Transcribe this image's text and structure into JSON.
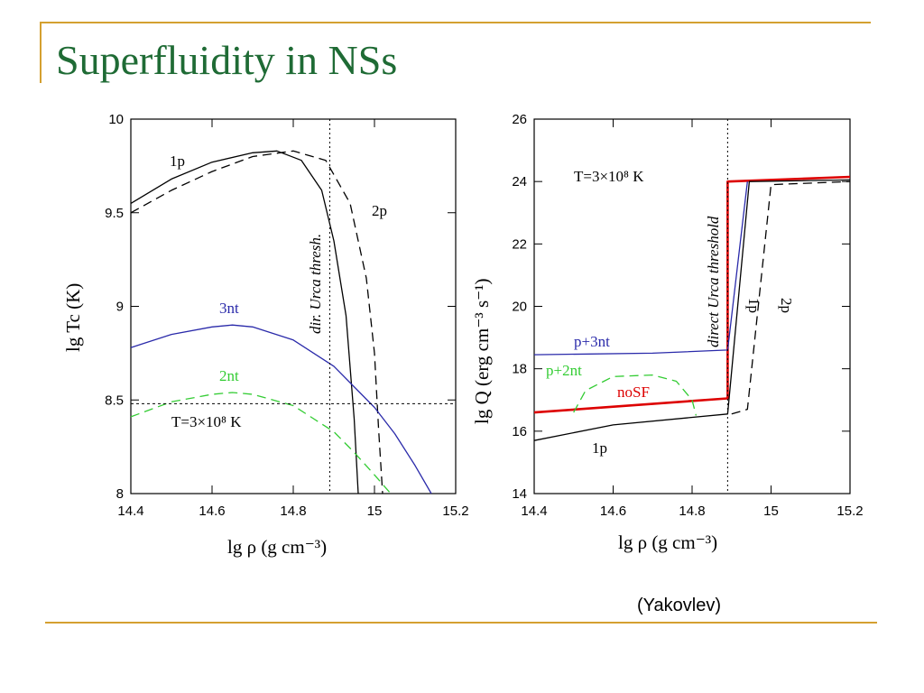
{
  "slide": {
    "title": "Superfluidity in NSs",
    "credit": "(Yakovlev)"
  },
  "chart_data": [
    {
      "type": "line",
      "xlabel": "lg ρ (g cm⁻³)",
      "ylabel": "lg Tc (K)",
      "xlim": [
        14.4,
        15.2
      ],
      "ylim": [
        8,
        10
      ],
      "xticks": [
        "14.4",
        "14.6",
        "14.8",
        "15",
        "15.2"
      ],
      "yticks": [
        "8",
        "8.5",
        "9",
        "9.5",
        "10"
      ],
      "series": [
        {
          "name": "1p",
          "color": "#000000",
          "dash": "solid",
          "x": [
            14.4,
            14.5,
            14.6,
            14.7,
            14.76,
            14.82,
            14.87,
            14.9,
            14.93,
            14.95,
            14.96
          ],
          "y": [
            9.55,
            9.68,
            9.77,
            9.82,
            9.83,
            9.78,
            9.62,
            9.35,
            8.95,
            8.4,
            8.0
          ]
        },
        {
          "name": "2p",
          "color": "#000000",
          "dash": "dashed",
          "x": [
            14.4,
            14.5,
            14.6,
            14.7,
            14.8,
            14.88,
            14.94,
            14.98,
            15.0,
            15.01,
            15.02
          ],
          "y": [
            9.5,
            9.62,
            9.72,
            9.8,
            9.83,
            9.78,
            9.55,
            9.15,
            8.75,
            8.35,
            8.0
          ]
        },
        {
          "name": "3nt",
          "color": "#2a2aaa",
          "dash": "solid",
          "x": [
            14.4,
            14.5,
            14.6,
            14.65,
            14.7,
            14.8,
            14.9,
            15.0,
            15.05,
            15.1,
            15.14
          ],
          "y": [
            8.78,
            8.85,
            8.89,
            8.9,
            8.89,
            8.82,
            8.68,
            8.46,
            8.32,
            8.15,
            8.0
          ]
        },
        {
          "name": "2nt",
          "color": "#33cc33",
          "dash": "dashed",
          "x": [
            14.4,
            14.5,
            14.6,
            14.65,
            14.7,
            14.8,
            14.9,
            14.95,
            15.0,
            15.04
          ],
          "y": [
            8.41,
            8.49,
            8.53,
            8.54,
            8.53,
            8.47,
            8.33,
            8.22,
            8.1,
            8.0
          ]
        }
      ],
      "reference_lines": {
        "horizontal": {
          "y": 8.48,
          "label": "T=3×10⁸ K"
        },
        "vertical": {
          "x": 14.89,
          "label": "dir. Urca thresh."
        }
      },
      "annotations": [
        "1p",
        "2p",
        "3nt",
        "2nt"
      ]
    },
    {
      "type": "line",
      "xlabel": "lg ρ (g cm⁻³)",
      "ylabel": "lg Q (erg cm⁻³ s⁻¹)",
      "xlim": [
        14.4,
        15.2
      ],
      "ylim": [
        14,
        26
      ],
      "xticks": [
        "14.4",
        "14.6",
        "14.8",
        "15",
        "15.2"
      ],
      "yticks": [
        "14",
        "16",
        "18",
        "20",
        "22",
        "24",
        "26"
      ],
      "series": [
        {
          "name": "noSF",
          "color": "#dd0000",
          "dash": "solid",
          "x": [
            14.4,
            14.89,
            14.89,
            15.2
          ],
          "y": [
            16.6,
            17.05,
            24.0,
            24.15
          ]
        },
        {
          "name": "p+3nt",
          "color": "#2a2aaa",
          "dash": "solid",
          "x": [
            14.4,
            14.7,
            14.89,
            14.94
          ],
          "y": [
            18.45,
            18.5,
            18.6,
            24.0
          ]
        },
        {
          "name": "1p",
          "color": "#000000",
          "dash": "solid",
          "x": [
            14.4,
            14.6,
            14.89,
            14.945,
            15.2
          ],
          "y": [
            15.7,
            16.2,
            16.55,
            24.0,
            24.05
          ]
        },
        {
          "name": "2p",
          "color": "#000000",
          "dash": "dashed",
          "x": [
            14.9,
            14.94,
            15.0,
            15.2
          ],
          "y": [
            16.55,
            16.7,
            23.9,
            24.0
          ]
        },
        {
          "name": "p+2nt",
          "color": "#33cc33",
          "dash": "dashed",
          "x": [
            14.5,
            14.53,
            14.6,
            14.7,
            14.76,
            14.8,
            14.81
          ],
          "y": [
            16.6,
            17.3,
            17.75,
            17.8,
            17.6,
            17.0,
            16.5
          ]
        }
      ],
      "reference_lines": {
        "vertical": {
          "x": 14.89,
          "label": "direct Urca threshold"
        }
      },
      "temperature_label": "T=3×10⁸ K",
      "annotations": [
        "p+3nt",
        "p+2nt",
        "noSF",
        "1p",
        "1p",
        "2p"
      ]
    }
  ]
}
